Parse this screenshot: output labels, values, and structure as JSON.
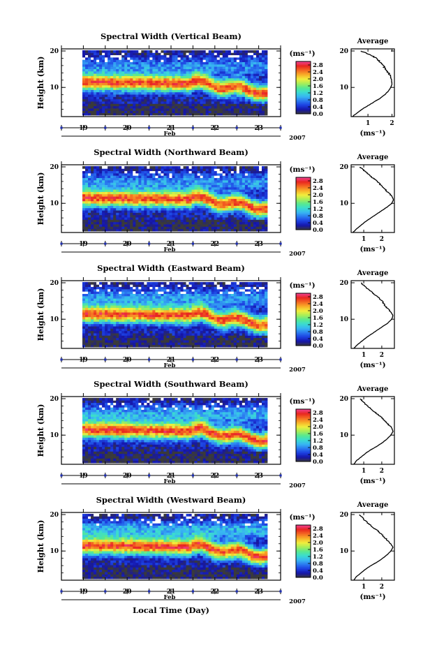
{
  "chart_data": {
    "type": "heatmap",
    "xlabel": "Local Time (Day)",
    "x_ticks": [
      "19",
      "20",
      "21",
      "22",
      "23"
    ],
    "month_label": "Feb",
    "year_label": "2007",
    "ylabel": "Height (km)",
    "y_ticks": [
      "10",
      "20"
    ],
    "ylim": [
      2,
      20
    ],
    "xlim": [
      18.5,
      23.5
    ],
    "colorbar": {
      "unit_label": "(ms⁻¹)",
      "ticks": [
        "0.0",
        "0.4",
        "0.8",
        "1.2",
        "1.6",
        "2.0",
        "2.4",
        "2.8"
      ],
      "range": [
        0.0,
        3.0
      ],
      "colors": [
        "#3a3a3a",
        "#1515a8",
        "#1c3ee0",
        "#2a78f0",
        "#38b6f2",
        "#3adcd0",
        "#58e890",
        "#a8ee58",
        "#f2ee3c",
        "#f8b028",
        "#f46a22",
        "#e8261e",
        "#f04090"
      ]
    },
    "average_profile": {
      "title": "Average",
      "x_unit_label": "(ms⁻¹)",
      "y_ticks": [
        "10",
        "20"
      ]
    },
    "panels": [
      {
        "title": "Spectral Width (Vertical Beam)",
        "cb_tick_labels": [
          "0.0",
          "0.4",
          "0.8",
          "1.2",
          "1.6",
          "2.0",
          "2.4",
          "2.8"
        ],
        "avg_x_ticks": [
          "1",
          "2"
        ],
        "avg_xlim": [
          0.3,
          2.1
        ],
        "mean_max": 2.0,
        "avg_profile": [
          [
            2,
            0.35
          ],
          [
            3,
            0.55
          ],
          [
            4,
            0.75
          ],
          [
            5,
            1.0
          ],
          [
            6,
            1.25
          ],
          [
            7,
            1.5
          ],
          [
            8,
            1.7
          ],
          [
            9,
            1.85
          ],
          [
            10,
            1.95
          ],
          [
            11,
            2.0
          ],
          [
            12,
            1.98
          ],
          [
            13,
            1.93
          ],
          [
            14,
            1.85
          ],
          [
            15,
            1.75
          ],
          [
            16,
            1.62
          ],
          [
            17,
            1.5
          ],
          [
            18,
            1.35
          ],
          [
            19,
            1.1
          ],
          [
            20,
            0.7
          ]
        ]
      },
      {
        "title": "Spectral Width (Northward Beam)",
        "cb_tick_labels": [
          "0.0",
          "0.4",
          "0.8",
          "1.2",
          "1.6",
          "2.0",
          "2.4",
          "2.8"
        ],
        "avg_x_ticks": [
          "1",
          "2"
        ],
        "avg_xlim": [
          0.3,
          2.7
        ],
        "mean_max": 2.6,
        "avg_profile": [
          [
            2,
            0.4
          ],
          [
            3,
            0.6
          ],
          [
            4,
            0.85
          ],
          [
            5,
            1.1
          ],
          [
            6,
            1.4
          ],
          [
            7,
            1.7
          ],
          [
            8,
            2.0
          ],
          [
            9,
            2.3
          ],
          [
            10,
            2.55
          ],
          [
            11,
            2.65
          ],
          [
            12,
            2.55
          ],
          [
            13,
            2.35
          ],
          [
            14,
            2.15
          ],
          [
            15,
            1.95
          ],
          [
            16,
            1.75
          ],
          [
            17,
            1.5
          ],
          [
            18,
            1.25
          ],
          [
            19,
            1.0
          ],
          [
            20,
            0.8
          ]
        ]
      },
      {
        "title": "Spectral Width (Eastward Beam)",
        "cb_tick_labels": [
          "0.0",
          "0.4",
          "0.8",
          "1.2",
          "1.6",
          "2.0",
          "2.4",
          "2.8"
        ],
        "avg_x_ticks": [
          "1",
          "2"
        ],
        "avg_xlim": [
          0.3,
          2.7
        ],
        "mean_max": 2.6,
        "avg_profile": [
          [
            2,
            0.45
          ],
          [
            3,
            0.65
          ],
          [
            4,
            0.9
          ],
          [
            5,
            1.15
          ],
          [
            6,
            1.45
          ],
          [
            7,
            1.75
          ],
          [
            8,
            2.05
          ],
          [
            9,
            2.35
          ],
          [
            10,
            2.55
          ],
          [
            11,
            2.62
          ],
          [
            12,
            2.5
          ],
          [
            13,
            2.3
          ],
          [
            14,
            2.15
          ],
          [
            15,
            2.0
          ],
          [
            16,
            1.8
          ],
          [
            17,
            1.55
          ],
          [
            18,
            1.3
          ],
          [
            19,
            1.05
          ],
          [
            20,
            0.85
          ]
        ]
      },
      {
        "title": "Spectral Width (Southward Beam)",
        "cb_tick_labels": [
          "0.0",
          "0.4",
          "0.8",
          "1.2",
          "1.6",
          "2.0",
          "2.4",
          "2.8"
        ],
        "avg_x_ticks": [
          "1",
          "2"
        ],
        "avg_xlim": [
          0.3,
          2.7
        ],
        "mean_max": 2.6,
        "avg_profile": [
          [
            2,
            0.45
          ],
          [
            3,
            0.6
          ],
          [
            4,
            0.85
          ],
          [
            5,
            1.1
          ],
          [
            6,
            1.4
          ],
          [
            7,
            1.75
          ],
          [
            8,
            2.05
          ],
          [
            9,
            2.3
          ],
          [
            10,
            2.5
          ],
          [
            11,
            2.62
          ],
          [
            12,
            2.55
          ],
          [
            13,
            2.35
          ],
          [
            14,
            2.15
          ],
          [
            15,
            1.95
          ],
          [
            16,
            1.7
          ],
          [
            17,
            1.45
          ],
          [
            18,
            1.2
          ],
          [
            19,
            1.0
          ],
          [
            20,
            0.8
          ]
        ]
      },
      {
        "title": "Spectral Width (Westward Beam)",
        "cb_tick_labels": [
          "0.0",
          "0.4",
          "0.8",
          "1.2",
          "1.6",
          "2.0",
          "2.4",
          "2.8"
        ],
        "avg_x_ticks": [
          "1",
          "2"
        ],
        "avg_xlim": [
          0.3,
          2.7
        ],
        "mean_max": 2.6,
        "avg_profile": [
          [
            2,
            0.45
          ],
          [
            3,
            0.6
          ],
          [
            4,
            0.85
          ],
          [
            5,
            1.1
          ],
          [
            6,
            1.4
          ],
          [
            7,
            1.75
          ],
          [
            8,
            2.05
          ],
          [
            9,
            2.3
          ],
          [
            10,
            2.5
          ],
          [
            11,
            2.62
          ],
          [
            12,
            2.5
          ],
          [
            13,
            2.3
          ],
          [
            14,
            2.1
          ],
          [
            15,
            1.9
          ],
          [
            16,
            1.65
          ],
          [
            17,
            1.4
          ],
          [
            18,
            1.15
          ],
          [
            19,
            0.95
          ],
          [
            20,
            0.78
          ]
        ]
      }
    ]
  }
}
